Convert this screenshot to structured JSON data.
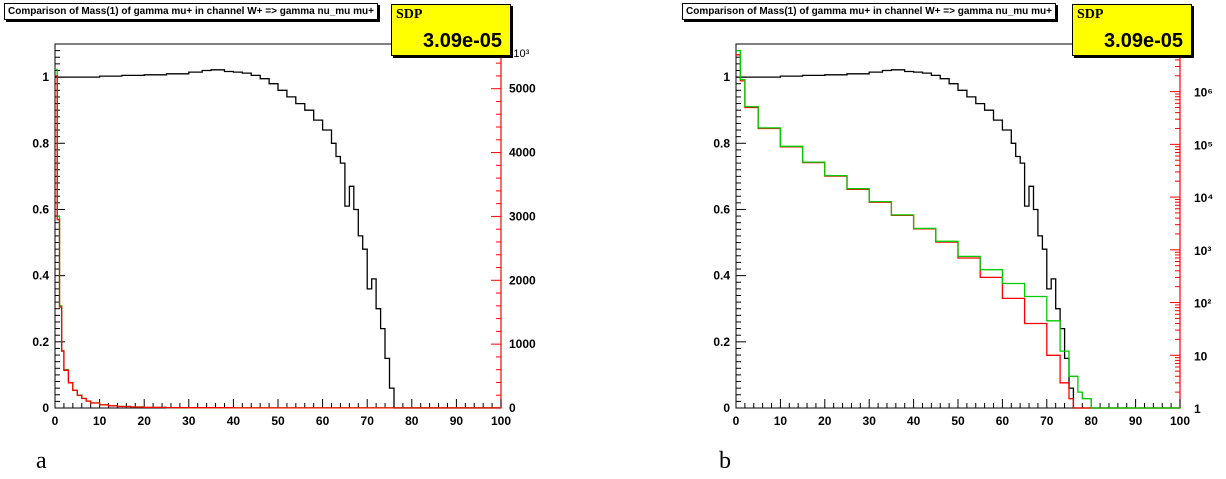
{
  "charts": [
    {
      "caption": "a",
      "title": "Comparison of Mass(1) of gamma mu+ in channel W+ => gamma nu_mu mu+",
      "stat_label": "SDP",
      "stat_value": "3.09e-05",
      "left_ticks": [
        "0",
        "0.2",
        "0.4",
        "0.6",
        "0.8",
        "1"
      ],
      "x_ticks": [
        "0",
        "10",
        "20",
        "30",
        "40",
        "50",
        "60",
        "70",
        "80",
        "90",
        "100"
      ],
      "right_ticks": [
        "0",
        "1000",
        "2000",
        "3000",
        "4000",
        "5000"
      ],
      "right_exponent": "×10³",
      "right_scale": "linear",
      "colors": {
        "ratio": "#000000",
        "red": "#ff0000",
        "green": "#00cc00",
        "right_axis": "#ff0000"
      }
    },
    {
      "caption": "b",
      "title": "Comparison of Mass(1) of gamma mu+ in channel W+ => gamma nu_mu mu+",
      "stat_label": "SDP",
      "stat_value": "3.09e-05",
      "left_ticks": [
        "0",
        "0.2",
        "0.4",
        "0.6",
        "0.8",
        "1"
      ],
      "x_ticks": [
        "0",
        "10",
        "20",
        "30",
        "40",
        "50",
        "60",
        "70",
        "80",
        "90",
        "100"
      ],
      "right_ticks": [
        "1",
        "10",
        "10²",
        "10³",
        "10⁴",
        "10⁵",
        "10⁶"
      ],
      "right_scale": "log",
      "colors": {
        "ratio": "#000000",
        "red": "#ff0000",
        "green": "#00cc00",
        "right_axis": "#ff0000"
      }
    }
  ],
  "chart_data": [
    {
      "type": "line",
      "title": "Comparison of Mass(1) of gamma mu+ in channel W+ => gamma nu_mu mu+",
      "xlim": [
        0,
        100
      ],
      "ylim": [
        0,
        1.1
      ],
      "y2lim": [
        0,
        5700
      ],
      "y2_scale": "linear",
      "series": [
        {
          "axis": "left",
          "color": "#000000",
          "x": [
            0,
            5,
            10,
            15,
            20,
            25,
            30,
            33,
            35,
            38,
            40,
            42,
            44,
            46,
            48,
            50,
            52,
            54,
            56,
            58,
            60,
            62,
            63,
            64,
            65,
            66,
            67,
            68,
            69,
            70,
            71,
            72,
            73,
            74,
            75,
            76
          ],
          "values": [
            1.0,
            1.0,
            1.003,
            1.005,
            1.007,
            1.01,
            1.015,
            1.02,
            1.022,
            1.017,
            1.015,
            1.012,
            1.005,
            0.995,
            0.98,
            0.96,
            0.94,
            0.92,
            0.9,
            0.87,
            0.84,
            0.8,
            0.76,
            0.74,
            0.61,
            0.67,
            0.6,
            0.52,
            0.48,
            0.36,
            0.39,
            0.3,
            0.24,
            0.15,
            0.06,
            0.0
          ]
        },
        {
          "axis": "right",
          "color": "#00cc00",
          "x": [
            0,
            0.5,
            1,
            1.5,
            2,
            3,
            4,
            5,
            6,
            7,
            8,
            10,
            12,
            14,
            17,
            20,
            25,
            30,
            40,
            60,
            100
          ],
          "values": [
            5300,
            3000,
            1600,
            900,
            600,
            400,
            280,
            200,
            150,
            110,
            80,
            50,
            35,
            25,
            15,
            10,
            6,
            4,
            2,
            1,
            0
          ]
        },
        {
          "axis": "right",
          "color": "#ff0000",
          "x": [
            0,
            0.5,
            1,
            1.5,
            2,
            3,
            4,
            5,
            6,
            7,
            8,
            10,
            12,
            14,
            17,
            20,
            25,
            30,
            40,
            60,
            100
          ],
          "values": [
            5200,
            2950,
            1580,
            890,
            590,
            395,
            275,
            198,
            148,
            108,
            78,
            49,
            34,
            24,
            15,
            10,
            6,
            4,
            2,
            1,
            0
          ]
        }
      ]
    },
    {
      "type": "line",
      "title": "Comparison of Mass(1) of gamma mu+ in channel W+ => gamma nu_mu mu+",
      "xlim": [
        0,
        100
      ],
      "ylim": [
        0,
        1.1
      ],
      "y2lim": [
        1,
        8000000
      ],
      "y2_scale": "log",
      "series": [
        {
          "axis": "left",
          "color": "#000000",
          "x": [
            0,
            5,
            10,
            15,
            20,
            25,
            30,
            33,
            35,
            38,
            40,
            42,
            44,
            46,
            48,
            50,
            52,
            54,
            56,
            58,
            60,
            62,
            63,
            64,
            65,
            66,
            67,
            68,
            69,
            70,
            71,
            72,
            73,
            74,
            75,
            76
          ],
          "values": [
            1.0,
            1.0,
            1.003,
            1.005,
            1.007,
            1.01,
            1.015,
            1.02,
            1.022,
            1.017,
            1.015,
            1.012,
            1.005,
            0.995,
            0.98,
            0.96,
            0.94,
            0.92,
            0.9,
            0.87,
            0.84,
            0.8,
            0.76,
            0.74,
            0.61,
            0.67,
            0.6,
            0.52,
            0.48,
            0.36,
            0.39,
            0.3,
            0.24,
            0.15,
            0.06,
            0.0
          ]
        },
        {
          "axis": "right",
          "color": "#ff0000",
          "x": [
            0,
            1,
            2,
            5,
            10,
            15,
            20,
            25,
            30,
            35,
            40,
            45,
            50,
            55,
            60,
            65,
            70,
            73,
            75,
            76
          ],
          "values": [
            5000000,
            1600000,
            500000,
            200000,
            90000,
            45000,
            25000,
            14000,
            8000,
            4500,
            2500,
            1400,
            700,
            300,
            120,
            40,
            10,
            3,
            1.5,
            1
          ]
        },
        {
          "axis": "right",
          "color": "#00cc00",
          "x": [
            0,
            1,
            2,
            5,
            10,
            15,
            20,
            25,
            30,
            35,
            40,
            45,
            50,
            55,
            60,
            65,
            70,
            73,
            75,
            77,
            78,
            79,
            80
          ],
          "values": [
            6000000,
            1700000,
            520000,
            205000,
            92000,
            46000,
            25500,
            14500,
            8200,
            4600,
            2550,
            1450,
            750,
            420,
            230,
            130,
            45,
            12,
            4,
            2,
            1.5,
            1.5,
            1
          ]
        }
      ]
    }
  ]
}
